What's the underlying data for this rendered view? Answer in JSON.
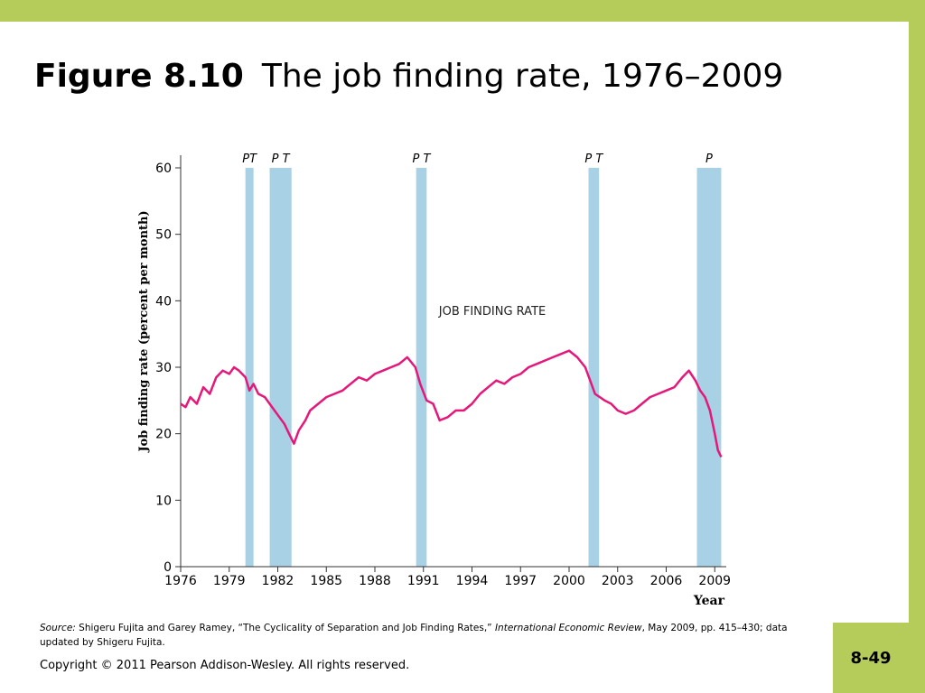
{
  "slide": {
    "title_figure": "Figure 8.10",
    "title_text": "The job finding rate, 1976–2009",
    "page_number": "8-49",
    "copyright": "Copyright © 2011 Pearson Addison-Wesley. All rights reserved.",
    "source_label": "Source:",
    "source_text_1": " Shigeru Fujita and Garey Ramey, “The Cyclicality of Separation and Job Finding Rates,” ",
    "source_journal": "International Economic Review",
    "source_text_2": ", May 2009, pp. 415–430; data updated by Shigeru Fujita.",
    "accent_color": "#b5cc5a"
  },
  "chart_data": {
    "type": "line",
    "title": "",
    "xlabel": "Year",
    "ylabel": "Job finding rate (percent per month)",
    "xlim": [
      1976,
      2009.6
    ],
    "ylim": [
      0,
      60
    ],
    "x_ticks": [
      1976,
      1979,
      1982,
      1985,
      1988,
      1991,
      1994,
      1997,
      2000,
      2003,
      2006,
      2009
    ],
    "y_ticks": [
      0,
      10,
      20,
      30,
      40,
      50,
      60
    ],
    "annotation": "JOB FINDING RATE",
    "line_color": "#e5187a",
    "recession_color": "#a8d1e6",
    "recessions": [
      {
        "start": 1980.0,
        "end": 1980.5,
        "label": "PT"
      },
      {
        "start": 1981.5,
        "end": 1982.85,
        "label": "P  T"
      },
      {
        "start": 1990.55,
        "end": 1991.2,
        "label": "P T"
      },
      {
        "start": 2001.2,
        "end": 2001.85,
        "label": "P T"
      },
      {
        "start": 2007.9,
        "end": 2009.4,
        "label": "P"
      }
    ],
    "series": [
      {
        "x": [
          1976.0,
          1976.3,
          1976.6,
          1977.0,
          1977.4,
          1977.8,
          1978.2,
          1978.6,
          1979.0,
          1979.3,
          1979.6,
          1980.0,
          1980.25,
          1980.5,
          1980.8,
          1981.2,
          1981.5,
          1981.8,
          1982.1,
          1982.4,
          1982.7,
          1983.0,
          1983.3,
          1983.7,
          1984.0,
          1984.5,
          1985.0,
          1985.5,
          1986.0,
          1986.5,
          1987.0,
          1987.5,
          1988.0,
          1988.5,
          1989.0,
          1989.5,
          1990.0,
          1990.5,
          1990.8,
          1991.2,
          1991.6,
          1992.0,
          1992.5,
          1993.0,
          1993.5,
          1994.0,
          1994.5,
          1995.0,
          1995.5,
          1996.0,
          1996.5,
          1997.0,
          1997.5,
          1998.0,
          1998.5,
          1999.0,
          1999.5,
          2000.0,
          2000.5,
          2001.0,
          2001.3,
          2001.6,
          2001.9,
          2002.2,
          2002.6,
          2003.0,
          2003.5,
          2004.0,
          2004.5,
          2005.0,
          2005.5,
          2006.0,
          2006.5,
          2007.0,
          2007.4,
          2007.8,
          2008.1,
          2008.4,
          2008.7,
          2009.0,
          2009.2,
          2009.4
        ],
        "y": [
          24.5,
          24.0,
          25.5,
          24.5,
          27.0,
          26.0,
          28.5,
          29.5,
          29.0,
          30.0,
          29.5,
          28.5,
          26.5,
          27.5,
          26.0,
          25.5,
          24.5,
          23.5,
          22.5,
          21.5,
          20.0,
          18.5,
          20.5,
          22.0,
          23.5,
          24.5,
          25.5,
          26.0,
          26.5,
          27.5,
          28.5,
          28.0,
          29.0,
          29.5,
          30.0,
          30.5,
          31.5,
          30.0,
          27.5,
          25.0,
          24.5,
          22.0,
          22.5,
          23.5,
          23.5,
          24.5,
          26.0,
          27.0,
          28.0,
          27.5,
          28.5,
          29.0,
          30.0,
          30.5,
          31.0,
          31.5,
          32.0,
          32.5,
          31.5,
          30.0,
          28.0,
          26.0,
          25.5,
          25.0,
          24.5,
          23.5,
          23.0,
          23.5,
          24.5,
          25.5,
          26.0,
          26.5,
          27.0,
          28.5,
          29.5,
          28.0,
          26.5,
          25.5,
          23.5,
          20.0,
          17.5,
          16.5
        ]
      }
    ]
  }
}
